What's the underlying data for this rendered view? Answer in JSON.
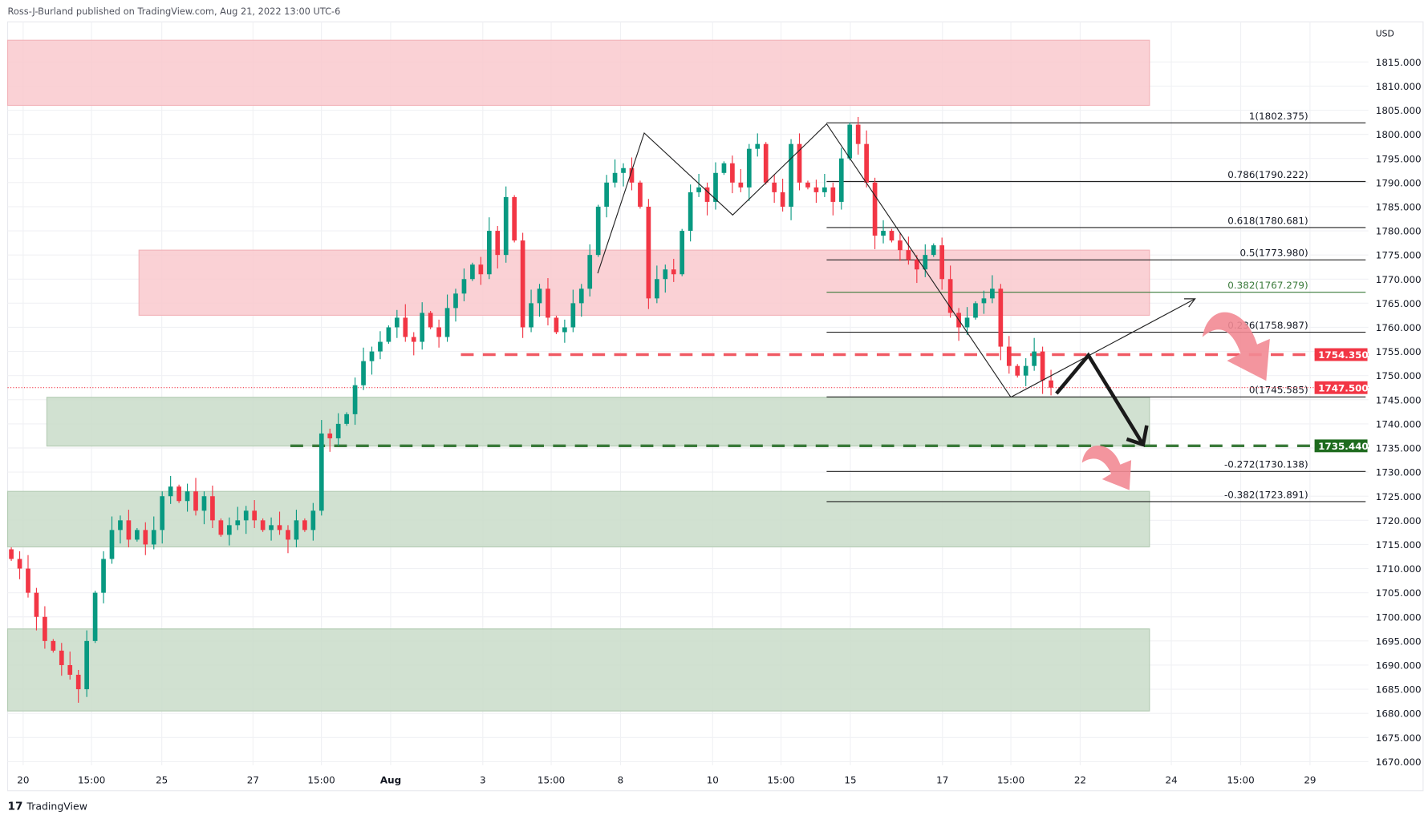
{
  "header": {
    "attribution": "Ross-J-Burland published on TradingView.com, Aug 21, 2022 13:00 UTC-6"
  },
  "footer": {
    "logo_text": "TradingView"
  },
  "colors": {
    "up": "#089981",
    "down": "#f23645",
    "resistance_zone": "#f9c9ce",
    "support_zone": "#c9dcc9",
    "red_level": "#f05a64",
    "green_level": "#3a7a3a"
  },
  "chart_data": {
    "type": "candlestick",
    "currency_label": "USD",
    "ylim": [
      1665,
      1820
    ],
    "y_ticks": [
      "1815.000",
      "1810.000",
      "1805.000",
      "1800.000",
      "1795.000",
      "1790.000",
      "1785.000",
      "1780.000",
      "1775.000",
      "1770.000",
      "1765.000",
      "1760.000",
      "1755.000",
      "1750.000",
      "1745.000",
      "1740.000",
      "1735.000",
      "1730.000",
      "1725.000",
      "1720.000",
      "1715.000",
      "1710.000",
      "1705.000",
      "1700.000",
      "1695.000",
      "1690.000",
      "1685.000",
      "1680.000",
      "1675.000",
      "1670.000"
    ],
    "x_ticks": [
      "20",
      "15:00",
      "25",
      "27",
      "15:00",
      "Aug",
      "3",
      "15:00",
      "8",
      "10",
      "15:00",
      "15",
      "17",
      "15:00",
      "22",
      "24",
      "15:00",
      "29"
    ],
    "closes": [
      1712,
      1710,
      1705,
      1700,
      1695,
      1693,
      1690,
      1688,
      1685,
      1695,
      1705,
      1712,
      1718,
      1720,
      1716,
      1718,
      1715,
      1718,
      1725,
      1727,
      1724,
      1726,
      1722,
      1725,
      1720,
      1717,
      1719,
      1720,
      1722,
      1720,
      1718,
      1719,
      1718,
      1716,
      1720,
      1718,
      1722,
      1738,
      1737,
      1740,
      1742,
      1748,
      1753,
      1755,
      1757,
      1760,
      1762,
      1758,
      1757,
      1763,
      1760,
      1758,
      1764,
      1767,
      1770,
      1773,
      1771,
      1780,
      1775,
      1787,
      1778,
      1760,
      1765,
      1768,
      1762,
      1759,
      1760,
      1765,
      1768,
      1775,
      1785,
      1790,
      1792,
      1793,
      1790,
      1785,
      1766,
      1770,
      1772,
      1771,
      1780,
      1788,
      1789,
      1786,
      1792,
      1794,
      1790,
      1789,
      1797,
      1798,
      1790,
      1788,
      1785,
      1798,
      1790,
      1789,
      1788,
      1789,
      1786,
      1795,
      1802,
      1798,
      1790,
      1779,
      1780,
      1778,
      1776,
      1774,
      1772,
      1775,
      1777,
      1770,
      1763,
      1760,
      1762,
      1765,
      1766,
      1768,
      1756,
      1752,
      1750,
      1752,
      1755,
      1749,
      1747.5
    ],
    "zones": [
      {
        "type": "resistance",
        "low": 1806,
        "high": 1819.5
      },
      {
        "type": "resistance",
        "low": 1762.5,
        "high": 1776
      },
      {
        "type": "support",
        "low": 1735.4,
        "high": 1745.5
      },
      {
        "type": "support",
        "low": 1714.5,
        "high": 1726
      },
      {
        "type": "support",
        "low": 1680.5,
        "high": 1697.5
      }
    ],
    "fib_levels": [
      {
        "label": "1(1802.375)",
        "value": 1802.375
      },
      {
        "label": "0.786(1790.222)",
        "value": 1790.222
      },
      {
        "label": "0.618(1780.681)",
        "value": 1780.681
      },
      {
        "label": "0.5(1773.980)",
        "value": 1773.98
      },
      {
        "label": "0.382(1767.279)",
        "value": 1767.279
      },
      {
        "label": "0.236(1758.987)",
        "value": 1758.987
      },
      {
        "label": "0(1745.585)",
        "value": 1745.585
      },
      {
        "label": "-0.272(1730.138)",
        "value": 1730.138
      },
      {
        "label": "-0.382(1723.891)",
        "value": 1723.891
      }
    ],
    "levels": {
      "resistance_line": {
        "label": "1754.350",
        "value": 1754.35
      },
      "current_price": {
        "label": "1747.500",
        "value": 1747.5
      },
      "support_line": {
        "label": "1735.440",
        "value": 1735.44
      }
    }
  }
}
